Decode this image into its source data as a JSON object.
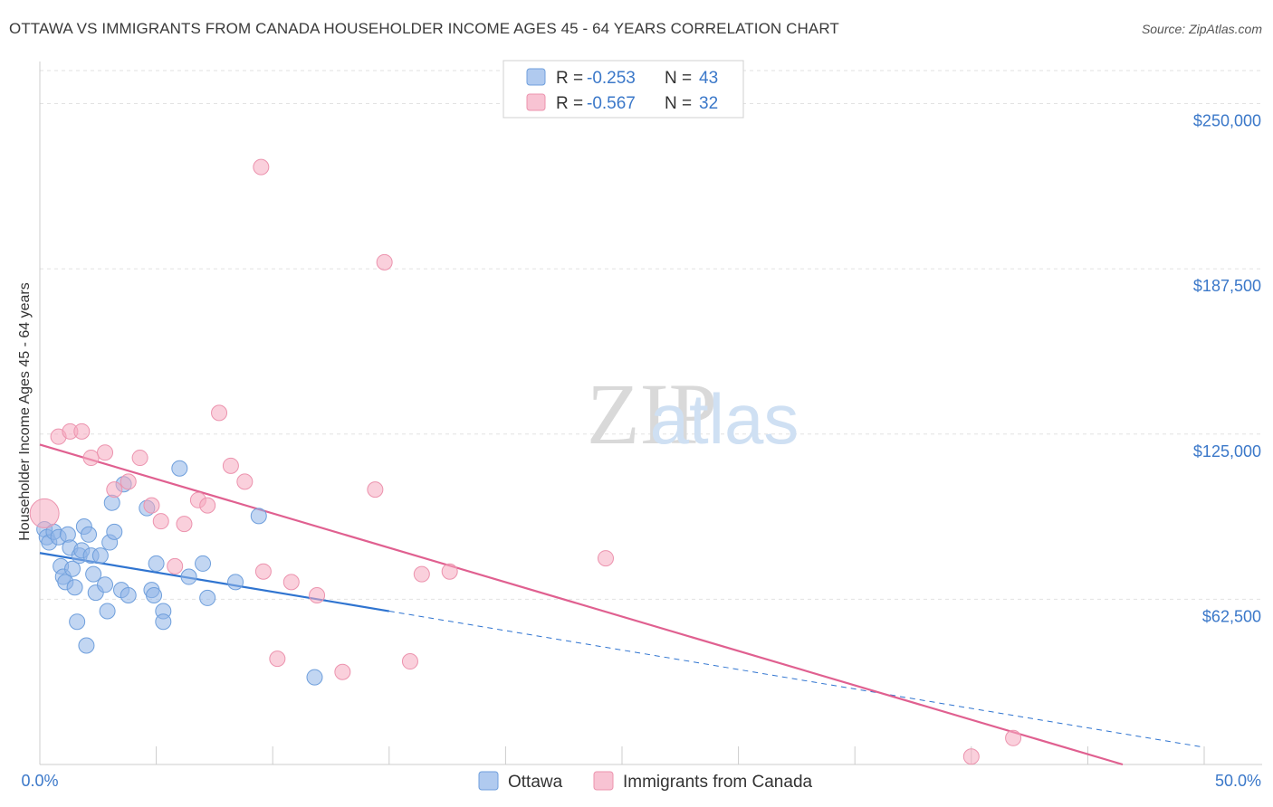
{
  "chart_data": {
    "type": "scatter",
    "title": "OTTAWA VS IMMIGRANTS FROM CANADA HOUSEHOLDER INCOME AGES 45 - 64 YEARS CORRELATION CHART",
    "source": "Source: ZipAtlas.com",
    "xlabel": "",
    "ylabel": "Householder Income Ages 45 - 64 years",
    "xlim": [
      0,
      50
    ],
    "ylim": [
      0,
      262500
    ],
    "x_tick_labels": [
      "0.0%",
      "50.0%"
    ],
    "y_ticks": [
      62500,
      125000,
      187500,
      250000
    ],
    "y_tick_labels": [
      "$62,500",
      "$125,000",
      "$187,500",
      "$250,000"
    ],
    "watermark": "ZIPatlas",
    "legend": {
      "rows": [
        {
          "r_label": "R = ",
          "r_value": "-0.253",
          "n_label": "N = ",
          "n_value": "43"
        },
        {
          "r_label": "R = ",
          "r_value": "-0.567",
          "n_label": "N = ",
          "n_value": "32"
        }
      ]
    },
    "series": [
      {
        "name": "Ottawa",
        "color": "#8fb4e8",
        "line_color": "#2f74d0",
        "trend": {
          "x0": 0,
          "y0": 80000,
          "x1": 15,
          "y1": 58000,
          "x_dash_end": 50,
          "y_dash_end": 6500
        },
        "points": [
          [
            0.2,
            89000
          ],
          [
            0.3,
            86000
          ],
          [
            0.4,
            84000
          ],
          [
            0.6,
            88000
          ],
          [
            0.8,
            86000
          ],
          [
            0.9,
            75000
          ],
          [
            1.0,
            71000
          ],
          [
            1.1,
            69000
          ],
          [
            1.2,
            87000
          ],
          [
            1.3,
            82000
          ],
          [
            1.4,
            74000
          ],
          [
            1.5,
            67000
          ],
          [
            1.6,
            54000
          ],
          [
            1.7,
            79000
          ],
          [
            1.8,
            81000
          ],
          [
            1.9,
            90000
          ],
          [
            2.0,
            45000
          ],
          [
            2.1,
            87000
          ],
          [
            2.2,
            79000
          ],
          [
            2.3,
            72000
          ],
          [
            2.4,
            65000
          ],
          [
            2.6,
            79000
          ],
          [
            2.8,
            68000
          ],
          [
            2.9,
            58000
          ],
          [
            3.0,
            84000
          ],
          [
            3.1,
            99000
          ],
          [
            3.2,
            88000
          ],
          [
            3.5,
            66000
          ],
          [
            3.6,
            106000
          ],
          [
            3.8,
            64000
          ],
          [
            4.6,
            97000
          ],
          [
            4.8,
            66000
          ],
          [
            4.9,
            64000
          ],
          [
            5.0,
            76000
          ],
          [
            5.3,
            58000
          ],
          [
            5.3,
            54000
          ],
          [
            6.0,
            112000
          ],
          [
            6.4,
            71000
          ],
          [
            7.0,
            76000
          ],
          [
            7.2,
            63000
          ],
          [
            8.4,
            69000
          ],
          [
            9.4,
            94000
          ],
          [
            11.8,
            33000
          ]
        ]
      },
      {
        "name": "Immigrants from Canada",
        "color": "#f5a9c0",
        "line_color": "#e06090",
        "trend": {
          "x0": 0,
          "y0": 121000,
          "x1": 46.5,
          "y1": 0
        },
        "points": [
          [
            0.2,
            95000
          ],
          [
            0.8,
            124000
          ],
          [
            1.3,
            126000
          ],
          [
            1.8,
            126000
          ],
          [
            2.2,
            116000
          ],
          [
            2.8,
            118000
          ],
          [
            3.2,
            104000
          ],
          [
            3.8,
            107000
          ],
          [
            4.3,
            116000
          ],
          [
            4.8,
            98000
          ],
          [
            5.2,
            92000
          ],
          [
            5.8,
            75000
          ],
          [
            6.2,
            91000
          ],
          [
            6.8,
            100000
          ],
          [
            7.2,
            98000
          ],
          [
            7.7,
            133000
          ],
          [
            8.2,
            113000
          ],
          [
            8.8,
            107000
          ],
          [
            9.5,
            226000
          ],
          [
            9.6,
            73000
          ],
          [
            10.2,
            40000
          ],
          [
            10.8,
            69000
          ],
          [
            11.9,
            64000
          ],
          [
            13.0,
            35000
          ],
          [
            14.4,
            104000
          ],
          [
            14.8,
            190000
          ],
          [
            15.9,
            39000
          ],
          [
            16.4,
            72000
          ],
          [
            17.6,
            73000
          ],
          [
            24.3,
            78000
          ],
          [
            40.0,
            3000
          ],
          [
            41.8,
            10000
          ]
        ]
      }
    ]
  }
}
